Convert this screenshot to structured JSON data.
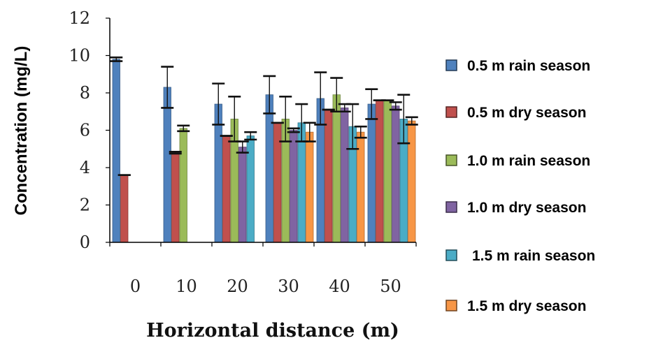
{
  "chart_data": {
    "type": "bar",
    "title": "",
    "xlabel": "Horizontal distance (m)",
    "ylabel": "Concentration (mg/L)",
    "ylim": [
      0,
      12
    ],
    "yticks": [
      "0",
      "2",
      "4",
      "6",
      "8",
      "10",
      "12"
    ],
    "categories": [
      "0",
      "10",
      "20",
      "30",
      "40",
      "50"
    ],
    "legend_position": "right",
    "error_bars": true,
    "series": [
      {
        "name": "0.5 m rain season",
        "color": "#4f81bd",
        "values": [
          9.8,
          8.3,
          7.4,
          7.9,
          7.7,
          7.4
        ],
        "errors": [
          0.1,
          1.1,
          1.1,
          1.0,
          1.4,
          0.8
        ]
      },
      {
        "name": "0.5 m dry season",
        "color": "#c0504d",
        "values": [
          3.6,
          4.8,
          5.7,
          6.4,
          7.1,
          7.6
        ],
        "errors": [
          0,
          0.05,
          0,
          0,
          0,
          0
        ]
      },
      {
        "name": "1.0 m rain season",
        "color": "#9bbb59",
        "values": [
          null,
          6.1,
          6.6,
          6.6,
          7.9,
          7.6
        ],
        "errors": [
          0,
          0.15,
          1.2,
          1.2,
          0.9,
          0
        ]
      },
      {
        "name": "1.0 m dry season",
        "color": "#8064a2",
        "values": [
          null,
          null,
          5.1,
          6.0,
          7.2,
          7.3
        ],
        "errors": [
          0,
          0,
          0.3,
          0.1,
          0.2,
          0.2
        ]
      },
      {
        "name": "1.5 m rain season",
        "color": "#4bacc6",
        "values": [
          null,
          null,
          5.7,
          6.4,
          6.2,
          6.6
        ],
        "errors": [
          0,
          0,
          0.2,
          1.0,
          1.2,
          1.3
        ]
      },
      {
        "name": "1.5 m dry season",
        "color": "#f79646",
        "values": [
          null,
          null,
          null,
          5.9,
          5.9,
          6.5
        ],
        "errors": [
          0,
          0,
          0,
          0.5,
          0.3,
          0.2
        ]
      }
    ]
  }
}
